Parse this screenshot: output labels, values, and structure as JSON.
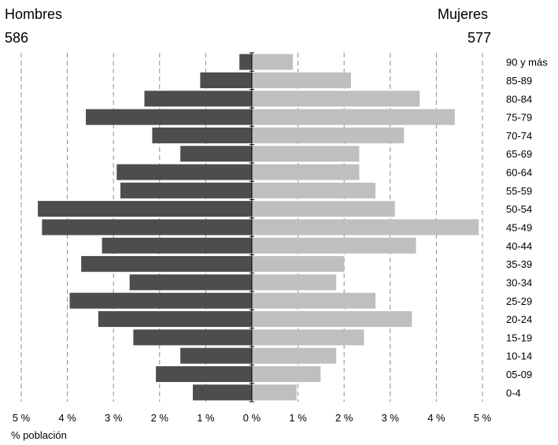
{
  "header": {
    "left_label": "Hombres",
    "left_total": "586",
    "right_label": "Mujeres",
    "right_total": "577"
  },
  "chart_data": {
    "type": "bar",
    "orientation": "horizontal",
    "subtype": "population-pyramid",
    "categories": [
      "90 y más",
      "85-89",
      "80-84",
      "75-79",
      "70-74",
      "65-69",
      "60-64",
      "55-59",
      "50-54",
      "45-49",
      "40-44",
      "35-39",
      "30-34",
      "25-29",
      "20-24",
      "15-19",
      "10-14",
      "05-09",
      "0-4"
    ],
    "series": [
      {
        "name": "Hombres",
        "color": "#4d4d4d",
        "values": [
          0.27,
          1.12,
          2.33,
          3.6,
          2.16,
          1.55,
          2.93,
          2.85,
          4.64,
          4.55,
          3.25,
          3.7,
          2.65,
          3.95,
          3.33,
          2.57,
          1.55,
          2.08,
          1.28
        ]
      },
      {
        "name": "Mujeres",
        "color": "#bfbfbf",
        "values": [
          0.89,
          2.15,
          3.64,
          4.4,
          3.3,
          2.33,
          2.33,
          2.68,
          3.1,
          4.92,
          3.56,
          2.0,
          1.83,
          2.68,
          3.47,
          2.43,
          1.83,
          1.49,
          0.97
        ]
      }
    ],
    "xlim": [
      -5,
      5
    ],
    "xticks": [
      "5 %",
      "4 %",
      "3 %",
      "2 %",
      "1 %",
      "0 %",
      "1 %",
      "2 %",
      "3 %",
      "4 %",
      "5 %"
    ],
    "xlabel": "% población",
    "grid": "vertical dashed"
  }
}
